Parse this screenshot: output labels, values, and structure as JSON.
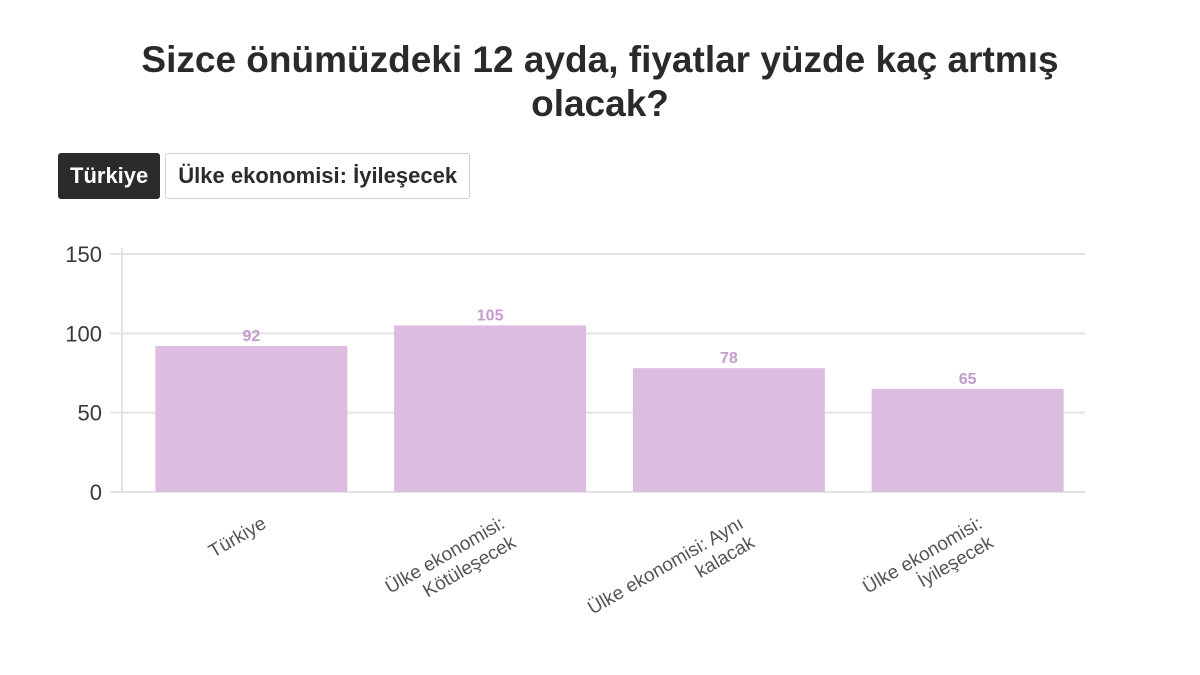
{
  "title_line1": "Sizce önümüzdeki 12 ayda, fiyatlar yüzde kaç artmış",
  "title_line2": "olacak?",
  "tabs": [
    {
      "label": "Türkiye",
      "active": true
    },
    {
      "label": "Ülke ekonomisi: İyileşecek",
      "active": false
    }
  ],
  "colors": {
    "bar": "#dcbde0",
    "data_label": "#c39ccc",
    "grid": "#e4e4e4",
    "active_tab": "#2b2b2b"
  },
  "chart_data": {
    "type": "bar",
    "categories": [
      "Türkiye",
      "Ülke ekonomisi: Kötüleşecek",
      "Ülke ekonomisi: Aynı kalacak",
      "Ülke ekonomisi: İyileşecek"
    ],
    "category_lines": [
      [
        "Türkiye"
      ],
      [
        "Ülke ekonomisi:",
        "Kötüleşecek"
      ],
      [
        "Ülke ekonomisi: Aynı",
        "kalacak"
      ],
      [
        "Ülke ekonomisi:",
        "İyileşecek"
      ]
    ],
    "values": [
      92,
      105,
      78,
      65
    ],
    "ylim": [
      0,
      150
    ],
    "yticks": [
      0,
      50,
      100,
      150
    ],
    "grid": true,
    "data_labels": true
  }
}
